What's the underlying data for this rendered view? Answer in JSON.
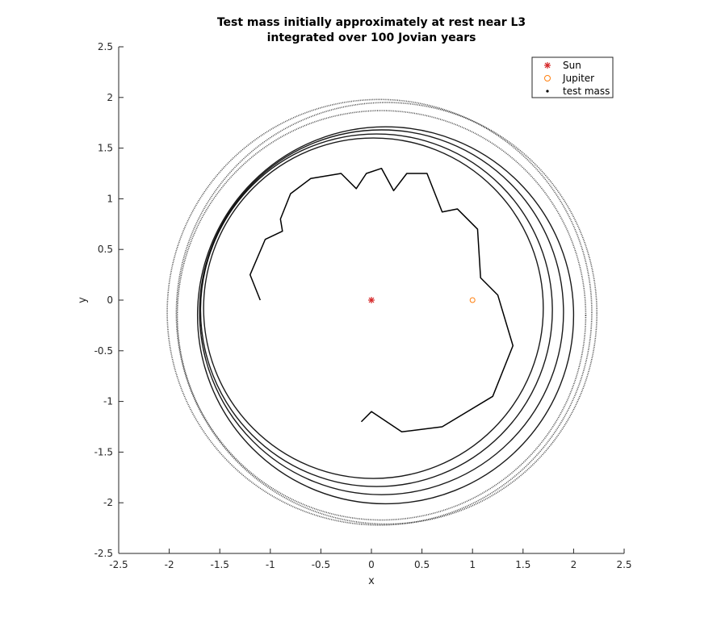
{
  "chart_data": {
    "type": "scatter",
    "title_lines": [
      "Test mass initially approximately at rest near L3",
      "integrated over 100 Jovian years"
    ],
    "xlabel": "x",
    "ylabel": "y",
    "xlim": [
      -2.5,
      2.5
    ],
    "ylim": [
      -2.5,
      2.5
    ],
    "xticks": [
      -2.5,
      -2,
      -1.5,
      -1,
      -0.5,
      0,
      0.5,
      1,
      1.5,
      2,
      2.5
    ],
    "yticks": [
      -2.5,
      -2,
      -1.5,
      -1,
      -0.5,
      0,
      0.5,
      1,
      1.5,
      2,
      2.5
    ],
    "xtick_labels": [
      "-2.5",
      "-2",
      "-1.5",
      "-1",
      "-0.5",
      "0",
      "0.5",
      "1",
      "1.5",
      "2",
      "2.5"
    ],
    "ytick_labels": [
      "-2.5",
      "-2",
      "-1.5",
      "-1",
      "-0.5",
      "0",
      "0.5",
      "1",
      "1.5",
      "2",
      "2.5"
    ],
    "grid": false,
    "legend_position": "top-right",
    "series": [
      {
        "name": "Sun",
        "marker": "asterisk",
        "color": "#d62728",
        "points": [
          [
            0,
            0
          ]
        ]
      },
      {
        "name": "Jupiter",
        "marker": "circle",
        "color": "#ff7f0e",
        "points": [
          [
            1,
            0
          ]
        ]
      },
      {
        "name": "test mass",
        "marker": "dot",
        "color": "#000000",
        "trajectory_loops": [
          {
            "cx": 0.02,
            "cy": -0.08,
            "r": 1.68
          },
          {
            "cx": 0.05,
            "cy": -0.1,
            "r": 1.74
          },
          {
            "cx": 0.1,
            "cy": -0.12,
            "r": 1.8
          },
          {
            "cx": 0.14,
            "cy": -0.15,
            "r": 1.86
          },
          {
            "cx": 0.1,
            "cy": -0.15,
            "r": 2.02
          },
          {
            "cx": 0.15,
            "cy": -0.13,
            "r": 2.08
          },
          {
            "cx": 0.08,
            "cy": -0.12,
            "r": 2.1
          }
        ],
        "inner_path": [
          [
            -1.1,
            0.0
          ],
          [
            -1.2,
            0.25
          ],
          [
            -1.05,
            0.6
          ],
          [
            -0.88,
            0.68
          ],
          [
            -0.9,
            0.8
          ],
          [
            -0.8,
            1.05
          ],
          [
            -0.6,
            1.2
          ],
          [
            -0.3,
            1.25
          ],
          [
            -0.15,
            1.1
          ],
          [
            -0.05,
            1.25
          ],
          [
            0.1,
            1.3
          ],
          [
            0.22,
            1.08
          ],
          [
            0.35,
            1.25
          ],
          [
            0.55,
            1.25
          ],
          [
            0.7,
            0.87
          ],
          [
            0.85,
            0.9
          ],
          [
            1.05,
            0.7
          ],
          [
            1.08,
            0.22
          ],
          [
            1.25,
            0.05
          ],
          [
            1.4,
            -0.45
          ],
          [
            1.2,
            -0.95
          ],
          [
            0.7,
            -1.25
          ],
          [
            0.3,
            -1.3
          ],
          [
            0.0,
            -1.1
          ],
          [
            -0.1,
            -1.2
          ]
        ]
      }
    ]
  }
}
